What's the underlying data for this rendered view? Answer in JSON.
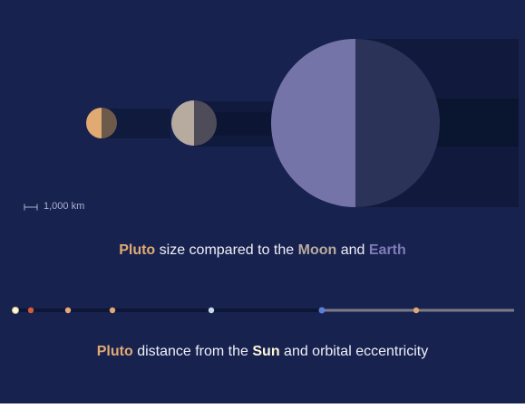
{
  "scale": {
    "label": "1,000 km"
  },
  "size_caption": {
    "pluto": "Pluto",
    "text1": " size compared to the ",
    "moon": "Moon",
    "text2": " and ",
    "earth": "Earth"
  },
  "distance_caption": {
    "pluto": "Pluto",
    "text1": " distance from the ",
    "sun": "Sun",
    "text2": " and orbital eccentricity"
  },
  "colors": {
    "background": "#18224f",
    "pluto": "#e0aa72",
    "moon": "#b7aba0",
    "earth": "#7574a8",
    "sun": "#fff8d8",
    "orbit_range": "#7d7b85"
  },
  "bodies": [
    {
      "name": "pluto",
      "radius_km": 1188
    },
    {
      "name": "moon",
      "radius_km": 1737
    },
    {
      "name": "earth",
      "radius_km": 6371
    }
  ],
  "distance_markers": [
    {
      "name": "sun",
      "color": "#fff8d8"
    },
    {
      "name": "mercury",
      "color": "#d85a3a"
    },
    {
      "name": "venus",
      "color": "#e8a878"
    },
    {
      "name": "earth",
      "color": "#e0aa72"
    },
    {
      "name": "mars",
      "color": "#c8d8e8"
    },
    {
      "name": "pluto-perihelion",
      "color": "#5b7fd6"
    },
    {
      "name": "pluto-aphelion-side",
      "color": "#e0aa72"
    }
  ]
}
